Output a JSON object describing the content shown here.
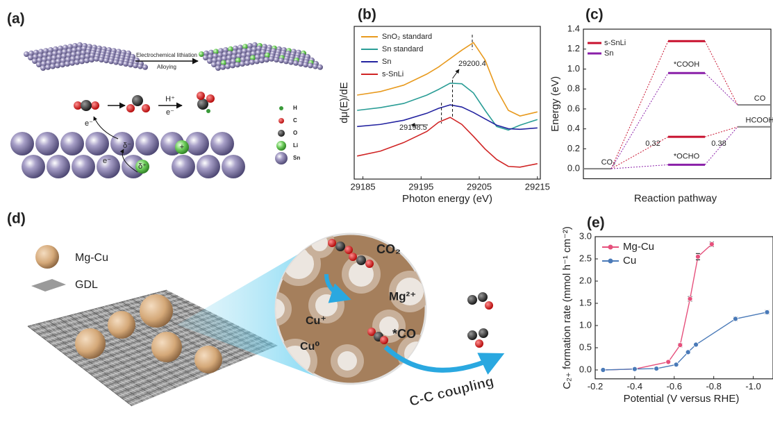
{
  "figure": {
    "panel_labels": [
      "(a)",
      "(b)",
      "(c)",
      "(d)",
      "(e)"
    ],
    "panel_a": {
      "arrow_top": "Electrochemical lithiation",
      "arrow_bottom": "Alloying",
      "reaction_top": "H⁺",
      "reaction_bottom": "e⁻",
      "electron_labels": [
        "e⁻",
        "e⁻"
      ],
      "charges": [
        "δ⁻",
        "δ⁺",
        "+"
      ],
      "legend": [
        "H",
        "C",
        "O",
        "Li",
        "Sn"
      ]
    },
    "panel_d": {
      "legend": [
        "Mg-Cu",
        "GDL"
      ],
      "labels": [
        "CO₂",
        "Mg²⁺",
        "Cu⁺",
        "Cu⁰",
        "*CO",
        "C-C coupling"
      ]
    }
  },
  "chart_data": [
    {
      "type": "line",
      "xlabel": "Photon energy (eV)",
      "ylabel": "dμ(E)/dE",
      "x": [
        29184,
        29188,
        29192,
        29196,
        29198,
        29200,
        29202,
        29204,
        29206,
        29208,
        29210,
        29212,
        29215
      ],
      "xlim": [
        29183.5,
        29215.5
      ],
      "xticks": [
        29185,
        29195,
        29205,
        29215
      ],
      "ylim": [
        0,
        10
      ],
      "legend": "upper left",
      "series": [
        {
          "name": "SnO₂ standard",
          "color": "#e89a1e",
          "values": [
            5.5,
            5.73,
            6.15,
            6.88,
            7.34,
            7.89,
            8.44,
            8.94,
            7.8,
            5.87,
            4.5,
            4.13,
            4.4
          ]
        },
        {
          "name": "Sn standard",
          "color": "#2a9d96",
          "values": [
            4.5,
            4.68,
            4.95,
            5.5,
            5.87,
            6.28,
            6.24,
            5.64,
            4.5,
            3.44,
            3.21,
            3.53,
            3.9
          ]
        },
        {
          "name": "Sn",
          "color": "#2323a0",
          "values": [
            3.44,
            3.58,
            3.85,
            4.31,
            4.63,
            4.86,
            4.72,
            4.36,
            3.94,
            3.53,
            3.3,
            3.26,
            3.35
          ]
        },
        {
          "name": "s-SnLi",
          "color": "#d02424",
          "values": [
            1.51,
            1.83,
            2.39,
            3.12,
            3.72,
            4.04,
            3.58,
            2.8,
            1.97,
            1.28,
            0.83,
            0.78,
            1.01
          ]
        }
      ],
      "annotations": [
        29200.4,
        29198.5
      ]
    },
    {
      "type": "energy-diagram",
      "xlabel": "Reaction pathway",
      "ylabel": "Energy (eV)",
      "ylim": [
        -0.1,
        1.4
      ],
      "yticks": [
        {
          "value": 0,
          "label": "0.0"
        },
        0.2,
        0.4,
        0.6,
        0.8,
        {
          "value": 1,
          "label": "1.0"
        },
        1.2,
        1.4
      ],
      "legend": "upper left",
      "level_color": "#808080",
      "start": {
        "label": "CO₂",
        "value": 0
      },
      "intermediates": [
        "*COOH",
        "*OCHO"
      ],
      "products": [
        {
          "label": "CO",
          "value": 0.64
        },
        {
          "label": "HCOOH",
          "value": 0.42
        }
      ],
      "series": [
        {
          "name": "s-SnLi",
          "color": "#c8102e",
          "values": [
            1.28,
            0.32
          ]
        },
        {
          "name": "Sn",
          "color": "#8a1fa8",
          "values": [
            0.96,
            0.04
          ]
        }
      ],
      "barriers": [
        {
          "value": 0.32,
          "color": "#c8102e"
        },
        {
          "value": 0.38,
          "color": "#8a1fa8"
        }
      ]
    },
    {
      "type": "line",
      "xlabel": "Potential (V versus RHE)",
      "ylabel": "C₂₊ formation rate (mmol h⁻¹ cm⁻²)",
      "xlim": [
        -0.2,
        -1.1
      ],
      "xticks": [
        -0.2,
        -0.4,
        -0.6,
        -0.8,
        {
          "value": -1,
          "label": "-1.0"
        }
      ],
      "ylim": [
        -0.2,
        3.0
      ],
      "yticks": [
        {
          "value": 0,
          "label": "0.0"
        },
        0.5,
        {
          "value": 1,
          "label": "1.0"
        },
        1.5,
        {
          "value": 2,
          "label": "2.0"
        },
        2.5,
        {
          "value": 3,
          "label": "3.0"
        }
      ],
      "legend": "upper left",
      "markers": true,
      "series": [
        {
          "name": "Mg-Cu",
          "color": "#e6507c",
          "x": [
            -0.24,
            -0.4,
            -0.57,
            -0.63,
            -0.68,
            -0.72,
            -0.79
          ],
          "values": [
            0,
            0.02,
            0.18,
            0.56,
            1.6,
            2.55,
            2.83
          ],
          "errors": [
            0.02,
            0.02,
            0.03,
            0.04,
            0.05,
            0.07,
            0.05
          ]
        },
        {
          "name": "Cu",
          "color": "#4a7ab8",
          "x": [
            -0.24,
            -0.4,
            -0.51,
            -0.61,
            -0.67,
            -0.71,
            -0.91,
            -1.07
          ],
          "values": [
            0,
            0.02,
            0.03,
            0.12,
            0.4,
            0.57,
            1.15,
            1.3
          ],
          "errors": [
            0.02,
            0.02,
            0.02,
            0.02,
            0.03,
            0.03,
            0.04,
            0.04
          ]
        }
      ]
    }
  ]
}
